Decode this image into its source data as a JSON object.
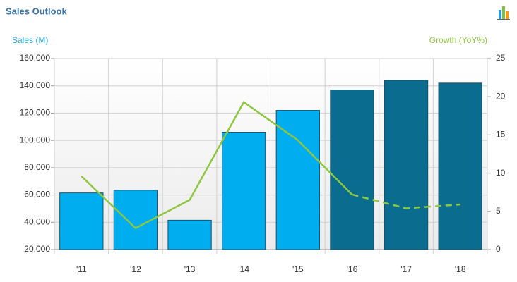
{
  "title": "Sales Outlook",
  "chart_data": {
    "type": "bar_line",
    "y_label": "Sales (M)",
    "y2_label": "Growth (YoY%)",
    "categories": [
      "'11",
      "'12",
      "'13",
      "'14",
      "'15",
      "'16",
      "'17",
      "'18"
    ],
    "series": [
      {
        "type": "bar",
        "values": [
          61500,
          63500,
          41500,
          106000,
          122000,
          137000,
          144000,
          142000
        ],
        "colors": [
          "#00aeef",
          "#00aeef",
          "#00aeef",
          "#00aeef",
          "#00aeef",
          "#0a6d8f",
          "#0a6d8f",
          "#0a6d8f"
        ]
      },
      {
        "type": "line",
        "axis": "y2",
        "color": "#8dc63f",
        "dashed_from": 5,
        "values": [
          9.6,
          2.8,
          6.5,
          19.3,
          14.3,
          7.2,
          5.4,
          5.9
        ]
      }
    ],
    "ylim": [
      20000,
      160000
    ],
    "yticks": [
      {
        "value": 20000,
        "label": "20,000"
      },
      {
        "value": 40000,
        "label": "40,000"
      },
      {
        "value": 60000,
        "label": "60,000"
      },
      {
        "value": 80000,
        "label": "80,000"
      },
      {
        "value": 100000,
        "label": "100,000"
      },
      {
        "value": 120000,
        "label": "120,000"
      },
      {
        "value": 140000,
        "label": "140,000"
      },
      {
        "value": 160000,
        "label": "160,000"
      }
    ],
    "y2lim": [
      0,
      25
    ],
    "y2ticks": [
      0,
      5,
      10,
      15,
      20,
      25
    ],
    "grid": true
  }
}
